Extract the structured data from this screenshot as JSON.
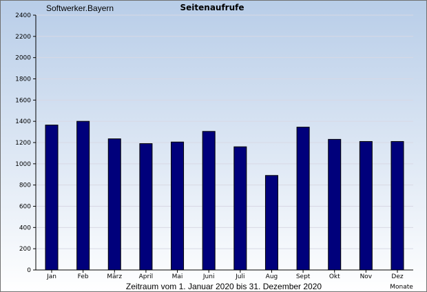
{
  "site_name": "Softwerker.Bayern",
  "chart_data": {
    "type": "bar",
    "title": "Seitenaufrufe",
    "xlabel": "Monate",
    "ylabel": "",
    "caption": "Zeitraum vom 1. Januar 2020 bis 31. Dezember 2020",
    "categories": [
      "Jan",
      "Feb",
      "März",
      "April",
      "Mai",
      "Juni",
      "Juli",
      "Aug",
      "Sept",
      "Okt",
      "Nov",
      "Dez"
    ],
    "values": [
      1365,
      1400,
      1235,
      1190,
      1205,
      1305,
      1160,
      890,
      1345,
      1230,
      1210,
      1210
    ],
    "ylim": [
      0,
      2400
    ],
    "yticks": [
      0,
      200,
      400,
      600,
      800,
      1000,
      1200,
      1400,
      1600,
      1800,
      2000,
      2200,
      2400
    ],
    "grid": true,
    "legend": "none",
    "colors": {
      "bar_fill": "#00007b",
      "bar_stroke": "#000000",
      "background_top": "#b8cde8",
      "background_bottom": "#ffffff",
      "gridline": "#d8d8e4",
      "axis": "#000000",
      "frame": "#707070"
    }
  }
}
